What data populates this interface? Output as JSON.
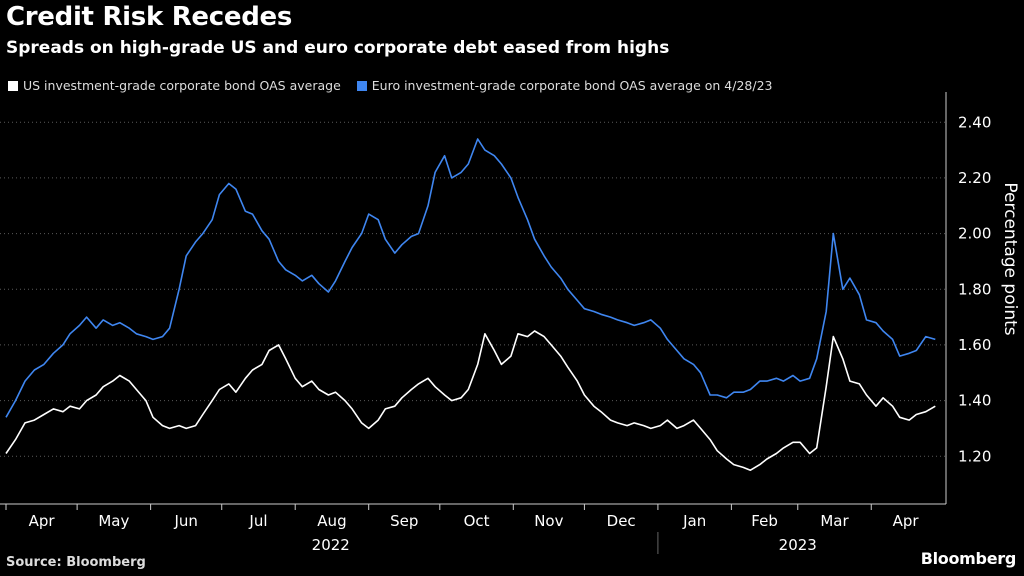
{
  "title": "Credit Risk Recedes",
  "subtitle": "Spreads on high-grade US and euro corporate debt eased from highs",
  "source": "Source: Bloomberg",
  "brand": "Bloomberg",
  "colors": {
    "us": "#ffffff",
    "euro": "#3f86f0",
    "grid": "#5a5a5a",
    "axis": "#cccccc"
  },
  "chart_data": {
    "type": "line",
    "ylabel": "Percentage points",
    "ylim": [
      1.05,
      2.48
    ],
    "yticks": [
      1.2,
      1.4,
      1.6,
      1.8,
      2.0,
      2.2,
      2.4
    ],
    "ytick_labels": [
      "1.20",
      "1.40",
      "1.60",
      "1.80",
      "2.00",
      "2.20",
      "2.40"
    ],
    "grid": true,
    "legend_position": "top-left",
    "x_start": "2022-04-01",
    "x_end": "2023-04-30",
    "month_ticks": [
      {
        "date": "2022-04-01",
        "label": "Apr"
      },
      {
        "date": "2022-05-01",
        "label": "May"
      },
      {
        "date": "2022-06-01",
        "label": "Jun"
      },
      {
        "date": "2022-07-01",
        "label": "Jul"
      },
      {
        "date": "2022-08-01",
        "label": "Aug"
      },
      {
        "date": "2022-09-01",
        "label": "Sep"
      },
      {
        "date": "2022-10-01",
        "label": "Oct"
      },
      {
        "date": "2022-11-01",
        "label": "Nov"
      },
      {
        "date": "2022-12-01",
        "label": "Dec"
      },
      {
        "date": "2023-01-01",
        "label": "Jan"
      },
      {
        "date": "2023-02-01",
        "label": "Feb"
      },
      {
        "date": "2023-03-01",
        "label": "Mar"
      },
      {
        "date": "2023-04-01",
        "label": "Apr"
      }
    ],
    "year_labels": [
      {
        "label": "2022",
        "center": "2022-08-16"
      },
      {
        "label": "2023",
        "center": "2023-03-01"
      }
    ],
    "year_divider": "2023-01-01",
    "series": [
      {
        "name": "US investment-grade corporate bond OAS average",
        "key": "us",
        "points": [
          [
            "2022-04-01",
            1.21
          ],
          [
            "2022-04-05",
            1.26
          ],
          [
            "2022-04-09",
            1.32
          ],
          [
            "2022-04-13",
            1.33
          ],
          [
            "2022-04-17",
            1.35
          ],
          [
            "2022-04-21",
            1.37
          ],
          [
            "2022-04-25",
            1.36
          ],
          [
            "2022-04-28",
            1.38
          ],
          [
            "2022-05-02",
            1.37
          ],
          [
            "2022-05-05",
            1.4
          ],
          [
            "2022-05-09",
            1.42
          ],
          [
            "2022-05-12",
            1.45
          ],
          [
            "2022-05-16",
            1.47
          ],
          [
            "2022-05-19",
            1.49
          ],
          [
            "2022-05-23",
            1.47
          ],
          [
            "2022-05-26",
            1.44
          ],
          [
            "2022-05-30",
            1.4
          ],
          [
            "2022-06-02",
            1.34
          ],
          [
            "2022-06-06",
            1.31
          ],
          [
            "2022-06-09",
            1.3
          ],
          [
            "2022-06-13",
            1.31
          ],
          [
            "2022-06-16",
            1.3
          ],
          [
            "2022-06-20",
            1.31
          ],
          [
            "2022-06-23",
            1.35
          ],
          [
            "2022-06-27",
            1.4
          ],
          [
            "2022-06-30",
            1.44
          ],
          [
            "2022-07-04",
            1.46
          ],
          [
            "2022-07-07",
            1.43
          ],
          [
            "2022-07-11",
            1.48
          ],
          [
            "2022-07-14",
            1.51
          ],
          [
            "2022-07-18",
            1.53
          ],
          [
            "2022-07-21",
            1.58
          ],
          [
            "2022-07-25",
            1.6
          ],
          [
            "2022-07-28",
            1.55
          ],
          [
            "2022-08-01",
            1.48
          ],
          [
            "2022-08-04",
            1.45
          ],
          [
            "2022-08-08",
            1.47
          ],
          [
            "2022-08-11",
            1.44
          ],
          [
            "2022-08-15",
            1.42
          ],
          [
            "2022-08-18",
            1.43
          ],
          [
            "2022-08-22",
            1.4
          ],
          [
            "2022-08-25",
            1.37
          ],
          [
            "2022-08-29",
            1.32
          ],
          [
            "2022-09-01",
            1.3
          ],
          [
            "2022-09-05",
            1.33
          ],
          [
            "2022-09-08",
            1.37
          ],
          [
            "2022-09-12",
            1.38
          ],
          [
            "2022-09-15",
            1.41
          ],
          [
            "2022-09-19",
            1.44
          ],
          [
            "2022-09-22",
            1.46
          ],
          [
            "2022-09-26",
            1.48
          ],
          [
            "2022-09-29",
            1.45
          ],
          [
            "2022-10-03",
            1.42
          ],
          [
            "2022-10-06",
            1.4
          ],
          [
            "2022-10-10",
            1.41
          ],
          [
            "2022-10-13",
            1.44
          ],
          [
            "2022-10-17",
            1.53
          ],
          [
            "2022-10-20",
            1.64
          ],
          [
            "2022-10-24",
            1.58
          ],
          [
            "2022-10-27",
            1.53
          ],
          [
            "2022-10-31",
            1.56
          ],
          [
            "2022-11-03",
            1.64
          ],
          [
            "2022-11-07",
            1.63
          ],
          [
            "2022-11-10",
            1.65
          ],
          [
            "2022-11-14",
            1.63
          ],
          [
            "2022-11-17",
            1.6
          ],
          [
            "2022-11-21",
            1.56
          ],
          [
            "2022-11-24",
            1.52
          ],
          [
            "2022-11-28",
            1.47
          ],
          [
            "2022-12-01",
            1.42
          ],
          [
            "2022-12-05",
            1.38
          ],
          [
            "2022-12-08",
            1.36
          ],
          [
            "2022-12-12",
            1.33
          ],
          [
            "2022-12-15",
            1.32
          ],
          [
            "2022-12-19",
            1.31
          ],
          [
            "2022-12-22",
            1.32
          ],
          [
            "2022-12-26",
            1.31
          ],
          [
            "2022-12-29",
            1.3
          ],
          [
            "2023-01-02",
            1.31
          ],
          [
            "2023-01-05",
            1.33
          ],
          [
            "2023-01-09",
            1.3
          ],
          [
            "2023-01-12",
            1.31
          ],
          [
            "2023-01-16",
            1.33
          ],
          [
            "2023-01-19",
            1.3
          ],
          [
            "2023-01-23",
            1.26
          ],
          [
            "2023-01-26",
            1.22
          ],
          [
            "2023-01-30",
            1.19
          ],
          [
            "2023-02-02",
            1.17
          ],
          [
            "2023-02-06",
            1.16
          ],
          [
            "2023-02-09",
            1.15
          ],
          [
            "2023-02-13",
            1.17
          ],
          [
            "2023-02-16",
            1.19
          ],
          [
            "2023-02-20",
            1.21
          ],
          [
            "2023-02-23",
            1.23
          ],
          [
            "2023-02-27",
            1.25
          ],
          [
            "2023-03-02",
            1.25
          ],
          [
            "2023-03-06",
            1.21
          ],
          [
            "2023-03-09",
            1.23
          ],
          [
            "2023-03-13",
            1.45
          ],
          [
            "2023-03-16",
            1.63
          ],
          [
            "2023-03-20",
            1.55
          ],
          [
            "2023-03-23",
            1.47
          ],
          [
            "2023-03-27",
            1.46
          ],
          [
            "2023-03-30",
            1.42
          ],
          [
            "2023-04-03",
            1.38
          ],
          [
            "2023-04-06",
            1.41
          ],
          [
            "2023-04-10",
            1.38
          ],
          [
            "2023-04-13",
            1.34
          ],
          [
            "2023-04-17",
            1.33
          ],
          [
            "2023-04-20",
            1.35
          ],
          [
            "2023-04-24",
            1.36
          ],
          [
            "2023-04-28",
            1.38
          ]
        ]
      },
      {
        "name": "Euro investment-grade corporate bond OAS average on 4/28/23",
        "key": "euro",
        "points": [
          [
            "2022-04-01",
            1.34
          ],
          [
            "2022-04-05",
            1.4
          ],
          [
            "2022-04-09",
            1.47
          ],
          [
            "2022-04-13",
            1.51
          ],
          [
            "2022-04-17",
            1.53
          ],
          [
            "2022-04-21",
            1.57
          ],
          [
            "2022-04-25",
            1.6
          ],
          [
            "2022-04-28",
            1.64
          ],
          [
            "2022-05-02",
            1.67
          ],
          [
            "2022-05-05",
            1.7
          ],
          [
            "2022-05-09",
            1.66
          ],
          [
            "2022-05-12",
            1.69
          ],
          [
            "2022-05-16",
            1.67
          ],
          [
            "2022-05-19",
            1.68
          ],
          [
            "2022-05-23",
            1.66
          ],
          [
            "2022-05-26",
            1.64
          ],
          [
            "2022-05-30",
            1.63
          ],
          [
            "2022-06-02",
            1.62
          ],
          [
            "2022-06-06",
            1.63
          ],
          [
            "2022-06-09",
            1.66
          ],
          [
            "2022-06-13",
            1.8
          ],
          [
            "2022-06-16",
            1.92
          ],
          [
            "2022-06-20",
            1.97
          ],
          [
            "2022-06-23",
            2.0
          ],
          [
            "2022-06-27",
            2.05
          ],
          [
            "2022-06-30",
            2.14
          ],
          [
            "2022-07-04",
            2.18
          ],
          [
            "2022-07-07",
            2.16
          ],
          [
            "2022-07-11",
            2.08
          ],
          [
            "2022-07-14",
            2.07
          ],
          [
            "2022-07-18",
            2.01
          ],
          [
            "2022-07-21",
            1.98
          ],
          [
            "2022-07-25",
            1.9
          ],
          [
            "2022-07-28",
            1.87
          ],
          [
            "2022-08-01",
            1.85
          ],
          [
            "2022-08-04",
            1.83
          ],
          [
            "2022-08-08",
            1.85
          ],
          [
            "2022-08-11",
            1.82
          ],
          [
            "2022-08-15",
            1.79
          ],
          [
            "2022-08-18",
            1.83
          ],
          [
            "2022-08-22",
            1.9
          ],
          [
            "2022-08-25",
            1.95
          ],
          [
            "2022-08-29",
            2.0
          ],
          [
            "2022-09-01",
            2.07
          ],
          [
            "2022-09-05",
            2.05
          ],
          [
            "2022-09-08",
            1.98
          ],
          [
            "2022-09-12",
            1.93
          ],
          [
            "2022-09-15",
            1.96
          ],
          [
            "2022-09-19",
            1.99
          ],
          [
            "2022-09-22",
            2.0
          ],
          [
            "2022-09-26",
            2.1
          ],
          [
            "2022-09-29",
            2.22
          ],
          [
            "2022-10-03",
            2.28
          ],
          [
            "2022-10-06",
            2.2
          ],
          [
            "2022-10-10",
            2.22
          ],
          [
            "2022-10-13",
            2.25
          ],
          [
            "2022-10-17",
            2.34
          ],
          [
            "2022-10-20",
            2.3
          ],
          [
            "2022-10-24",
            2.28
          ],
          [
            "2022-10-27",
            2.25
          ],
          [
            "2022-10-31",
            2.2
          ],
          [
            "2022-11-03",
            2.13
          ],
          [
            "2022-11-07",
            2.05
          ],
          [
            "2022-11-10",
            1.98
          ],
          [
            "2022-11-14",
            1.92
          ],
          [
            "2022-11-17",
            1.88
          ],
          [
            "2022-11-21",
            1.84
          ],
          [
            "2022-11-24",
            1.8
          ],
          [
            "2022-11-28",
            1.76
          ],
          [
            "2022-12-01",
            1.73
          ],
          [
            "2022-12-05",
            1.72
          ],
          [
            "2022-12-08",
            1.71
          ],
          [
            "2022-12-12",
            1.7
          ],
          [
            "2022-12-15",
            1.69
          ],
          [
            "2022-12-19",
            1.68
          ],
          [
            "2022-12-22",
            1.67
          ],
          [
            "2022-12-26",
            1.68
          ],
          [
            "2022-12-29",
            1.69
          ],
          [
            "2023-01-02",
            1.66
          ],
          [
            "2023-01-05",
            1.62
          ],
          [
            "2023-01-09",
            1.58
          ],
          [
            "2023-01-12",
            1.55
          ],
          [
            "2023-01-16",
            1.53
          ],
          [
            "2023-01-19",
            1.5
          ],
          [
            "2023-01-23",
            1.42
          ],
          [
            "2023-01-26",
            1.42
          ],
          [
            "2023-01-30",
            1.41
          ],
          [
            "2023-02-02",
            1.43
          ],
          [
            "2023-02-06",
            1.43
          ],
          [
            "2023-02-09",
            1.44
          ],
          [
            "2023-02-13",
            1.47
          ],
          [
            "2023-02-16",
            1.47
          ],
          [
            "2023-02-20",
            1.48
          ],
          [
            "2023-02-23",
            1.47
          ],
          [
            "2023-02-27",
            1.49
          ],
          [
            "2023-03-02",
            1.47
          ],
          [
            "2023-03-06",
            1.48
          ],
          [
            "2023-03-09",
            1.55
          ],
          [
            "2023-03-13",
            1.72
          ],
          [
            "2023-03-16",
            2.0
          ],
          [
            "2023-03-20",
            1.8
          ],
          [
            "2023-03-23",
            1.84
          ],
          [
            "2023-03-27",
            1.78
          ],
          [
            "2023-03-30",
            1.69
          ],
          [
            "2023-04-03",
            1.68
          ],
          [
            "2023-04-06",
            1.65
          ],
          [
            "2023-04-10",
            1.62
          ],
          [
            "2023-04-13",
            1.56
          ],
          [
            "2023-04-17",
            1.57
          ],
          [
            "2023-04-20",
            1.58
          ],
          [
            "2023-04-24",
            1.63
          ],
          [
            "2023-04-28",
            1.62
          ]
        ]
      }
    ]
  }
}
